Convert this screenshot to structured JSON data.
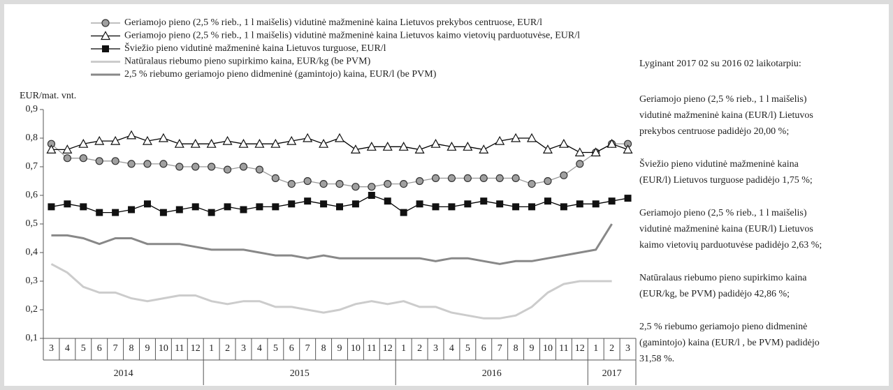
{
  "chart_data": {
    "type": "line",
    "y_label": "EUR/mat. vnt.",
    "categories": [
      "3",
      "4",
      "5",
      "6",
      "7",
      "8",
      "9",
      "10",
      "11",
      "12",
      "1",
      "2",
      "3",
      "4",
      "5",
      "6",
      "7",
      "8",
      "9",
      "10",
      "11",
      "12",
      "1",
      "2",
      "3",
      "4",
      "5",
      "6",
      "7",
      "8",
      "9",
      "10",
      "11",
      "12",
      "1",
      "2",
      "3"
    ],
    "x_groups": [
      "2014",
      "2015",
      "2016",
      "2017"
    ],
    "ylim": [
      0.1,
      0.9
    ],
    "yticks": [
      {
        "value": 0.1,
        "label": "0,1"
      },
      {
        "value": 0.2,
        "label": "0,2"
      },
      {
        "value": 0.3,
        "label": "0,3"
      },
      {
        "value": 0.4,
        "label": "0,4"
      },
      {
        "value": 0.5,
        "label": "0,5"
      },
      {
        "value": 0.6,
        "label": "0,6"
      },
      {
        "value": 0.7,
        "label": "0,7"
      },
      {
        "value": 0.8,
        "label": "0,8"
      },
      {
        "value": 0.9,
        "label": "0,9"
      }
    ],
    "series": [
      {
        "name": "Geriamojo pieno (2,5 % rieb., 1 l maišelis) vidutinė mažmeninė kaina Lietuvos prekybos centruose, EUR/l",
        "color": "#999999",
        "marker": "circle",
        "values": [
          0.78,
          0.73,
          0.73,
          0.72,
          0.72,
          0.71,
          0.71,
          0.71,
          0.7,
          0.7,
          0.7,
          0.69,
          0.7,
          0.69,
          0.66,
          0.64,
          0.65,
          0.64,
          0.64,
          0.63,
          0.63,
          0.64,
          0.64,
          0.65,
          0.66,
          0.66,
          0.66,
          0.66,
          0.66,
          0.66,
          0.64,
          0.65,
          0.67,
          0.71,
          0.75,
          0.78,
          0.78
        ]
      },
      {
        "name": "Geriamojo pieno (2,5 % rieb., 1 l maišelis) vidutinė mažmeninė kaina Lietuvos kaimo vietovių parduotuvėse, EUR/l",
        "color": "#000000",
        "marker": "triangle",
        "values": [
          0.76,
          0.76,
          0.78,
          0.79,
          0.79,
          0.81,
          0.79,
          0.8,
          0.78,
          0.78,
          0.78,
          0.79,
          0.78,
          0.78,
          0.78,
          0.79,
          0.8,
          0.78,
          0.8,
          0.76,
          0.77,
          0.77,
          0.77,
          0.76,
          0.78,
          0.77,
          0.77,
          0.76,
          0.79,
          0.8,
          0.8,
          0.76,
          0.78,
          0.75,
          0.75,
          0.78,
          0.76
        ]
      },
      {
        "name": "Šviežio pieno vidutinė mažmeninė kaina Lietuvos turguose, EUR/l",
        "color": "#000000",
        "marker": "square",
        "values": [
          0.56,
          0.57,
          0.56,
          0.54,
          0.54,
          0.55,
          0.57,
          0.54,
          0.55,
          0.56,
          0.54,
          0.56,
          0.55,
          0.56,
          0.56,
          0.57,
          0.58,
          0.57,
          0.56,
          0.57,
          0.6,
          0.58,
          0.54,
          0.57,
          0.56,
          0.56,
          0.57,
          0.58,
          0.57,
          0.56,
          0.56,
          0.58,
          0.56,
          0.57,
          0.57,
          0.58,
          0.59
        ]
      },
      {
        "name": "Natūralaus riebumo pieno supirkimo kaina, EUR/kg (be PVM)",
        "color": "#cccccc",
        "marker": "none",
        "values": [
          0.36,
          0.33,
          0.28,
          0.26,
          0.26,
          0.24,
          0.23,
          0.24,
          0.25,
          0.25,
          0.23,
          0.22,
          0.23,
          0.23,
          0.21,
          0.21,
          0.2,
          0.19,
          0.2,
          0.22,
          0.23,
          0.22,
          0.23,
          0.21,
          0.21,
          0.19,
          0.18,
          0.17,
          0.17,
          0.18,
          0.21,
          0.26,
          0.29,
          0.3,
          0.3,
          0.3,
          null
        ]
      },
      {
        "name": "2,5 % riebumo geriamojo pieno didmeninė (gamintojo) kaina, EUR/l (be PVM)",
        "color": "#888888",
        "marker": "none",
        "values": [
          0.46,
          0.46,
          0.45,
          0.43,
          0.45,
          0.45,
          0.43,
          0.43,
          0.43,
          0.42,
          0.41,
          0.41,
          0.41,
          0.4,
          0.39,
          0.39,
          0.38,
          0.39,
          0.38,
          0.38,
          0.38,
          0.38,
          0.38,
          0.38,
          0.37,
          0.38,
          0.38,
          0.37,
          0.36,
          0.37,
          0.37,
          0.38,
          0.39,
          0.4,
          0.41,
          0.5,
          null
        ]
      }
    ]
  },
  "side_text": {
    "heading": "Lyginant 2017 02 su 2016 02 laikotarpiu:",
    "paragraphs": [
      [
        "Geriamojo pieno (2,5 % rieb., 1 l maišelis)",
        "vidutinė mažmeninė kaina (EUR/l) Lietuvos",
        "prekybos centruose padidėjo 20,00 %;"
      ],
      [
        "Šviežio pieno vidutinė mažmeninė kaina",
        "(EUR/l) Lietuvos turguose  padidėjo 1,75 %;"
      ],
      [
        "Geriamojo pieno (2,5 % rieb., 1 l maišelis)",
        "vidutinė mažmeninė kaina (EUR/l) Lietuvos",
        "kaimo vietovių parduotuvėse padidėjo 2,63 %;"
      ],
      [
        "Natūralaus riebumo pieno supirkimo kaina",
        "(EUR/kg, be PVM) padidėjo 42,86 %;"
      ],
      [
        "2,5 % riebumo geriamojo pieno didmeninė",
        "(gamintojo) kaina (EUR/l , be PVM) padidėjo",
        "31,58 %."
      ]
    ]
  }
}
